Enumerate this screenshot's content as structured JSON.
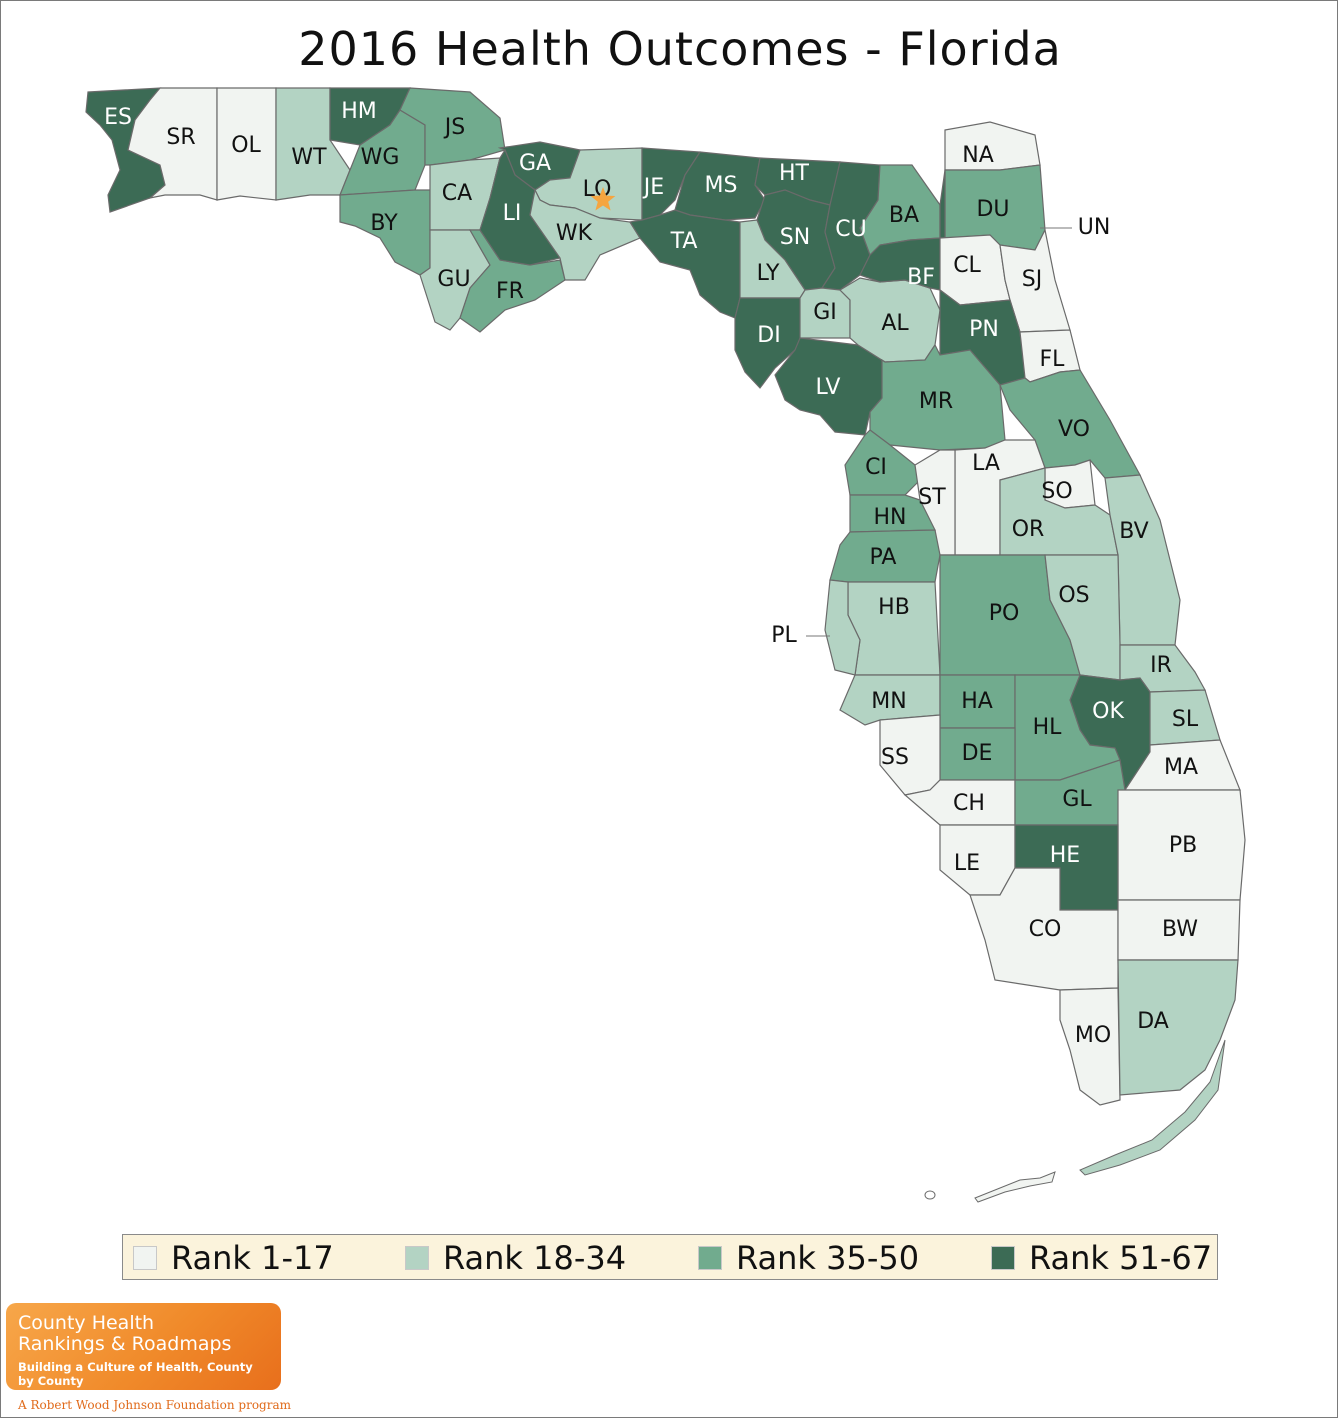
{
  "title": "2016 Health Outcomes - Florida",
  "colors": {
    "rank_1_17": "#f1f4f1",
    "rank_18_34": "#b3d3c3",
    "rank_35_50": "#71ab8e",
    "rank_51_67": "#3c6b55",
    "water": "#ffffff",
    "highlight_star": "#f5a540"
  },
  "legend": {
    "items": [
      {
        "label": "Rank 1-17",
        "color": "#f1f4f1"
      },
      {
        "label": "Rank 18-34",
        "color": "#b3d3c3"
      },
      {
        "label": "Rank 35-50",
        "color": "#71ab8e"
      },
      {
        "label": "Rank 51-67",
        "color": "#3c6b55"
      }
    ]
  },
  "counties": [
    {
      "id": "ES",
      "rank_group": 4
    },
    {
      "id": "SR",
      "rank_group": 1
    },
    {
      "id": "OL",
      "rank_group": 1
    },
    {
      "id": "WT",
      "rank_group": 2
    },
    {
      "id": "HM",
      "rank_group": 4
    },
    {
      "id": "WG",
      "rank_group": 3
    },
    {
      "id": "JS",
      "rank_group": 3
    },
    {
      "id": "BY",
      "rank_group": 3
    },
    {
      "id": "CA",
      "rank_group": 2
    },
    {
      "id": "GU",
      "rank_group": 2
    },
    {
      "id": "FR",
      "rank_group": 3
    },
    {
      "id": "GA",
      "rank_group": 4
    },
    {
      "id": "LI",
      "rank_group": 4
    },
    {
      "id": "LO",
      "rank_group": 2
    },
    {
      "id": "WK",
      "rank_group": 2
    },
    {
      "id": "JE",
      "rank_group": 4
    },
    {
      "id": "MS",
      "rank_group": 4
    },
    {
      "id": "TA",
      "rank_group": 4
    },
    {
      "id": "HT",
      "rank_group": 4
    },
    {
      "id": "SN",
      "rank_group": 4
    },
    {
      "id": "CU",
      "rank_group": 4
    },
    {
      "id": "LY",
      "rank_group": 2
    },
    {
      "id": "DI",
      "rank_group": 4
    },
    {
      "id": "GI",
      "rank_group": 2
    },
    {
      "id": "LV",
      "rank_group": 4
    },
    {
      "id": "AL",
      "rank_group": 2
    },
    {
      "id": "BA",
      "rank_group": 3
    },
    {
      "id": "BF",
      "rank_group": 4
    },
    {
      "id": "NA",
      "rank_group": 1
    },
    {
      "id": "DU",
      "rank_group": 3
    },
    {
      "id": "UN",
      "rank_group": 4
    },
    {
      "id": "CL",
      "rank_group": 1
    },
    {
      "id": "SJ",
      "rank_group": 1
    },
    {
      "id": "PN",
      "rank_group": 4
    },
    {
      "id": "FL",
      "rank_group": 1
    },
    {
      "id": "MR",
      "rank_group": 3
    },
    {
      "id": "VO",
      "rank_group": 3
    },
    {
      "id": "CI",
      "rank_group": 3
    },
    {
      "id": "LA",
      "rank_group": 1
    },
    {
      "id": "ST",
      "rank_group": 1
    },
    {
      "id": "SO",
      "rank_group": 1
    },
    {
      "id": "HN",
      "rank_group": 3
    },
    {
      "id": "OR",
      "rank_group": 2
    },
    {
      "id": "BV",
      "rank_group": 2
    },
    {
      "id": "PA",
      "rank_group": 3
    },
    {
      "id": "HB",
      "rank_group": 2
    },
    {
      "id": "PL",
      "rank_group": 2
    },
    {
      "id": "PO",
      "rank_group": 3
    },
    {
      "id": "OS",
      "rank_group": 2
    },
    {
      "id": "IR",
      "rank_group": 2
    },
    {
      "id": "MN",
      "rank_group": 2
    },
    {
      "id": "HA",
      "rank_group": 3
    },
    {
      "id": "OK",
      "rank_group": 4
    },
    {
      "id": "SL",
      "rank_group": 2
    },
    {
      "id": "HL",
      "rank_group": 3
    },
    {
      "id": "DE",
      "rank_group": 3
    },
    {
      "id": "SS",
      "rank_group": 1
    },
    {
      "id": "MA",
      "rank_group": 1
    },
    {
      "id": "CH",
      "rank_group": 1
    },
    {
      "id": "GL",
      "rank_group": 3
    },
    {
      "id": "PB",
      "rank_group": 1
    },
    {
      "id": "LE",
      "rank_group": 1
    },
    {
      "id": "HE",
      "rank_group": 4
    },
    {
      "id": "CO",
      "rank_group": 1
    },
    {
      "id": "BW",
      "rank_group": 1
    },
    {
      "id": "MO",
      "rank_group": 1
    },
    {
      "id": "DA",
      "rank_group": 2
    }
  ],
  "highlighted_county": "LO",
  "logo": {
    "line1": "County Health",
    "line2": "Rankings & Roadmaps",
    "tagline": "Building a Culture of Health, County by County",
    "footer": "A Robert Wood Johnson Foundation program"
  }
}
